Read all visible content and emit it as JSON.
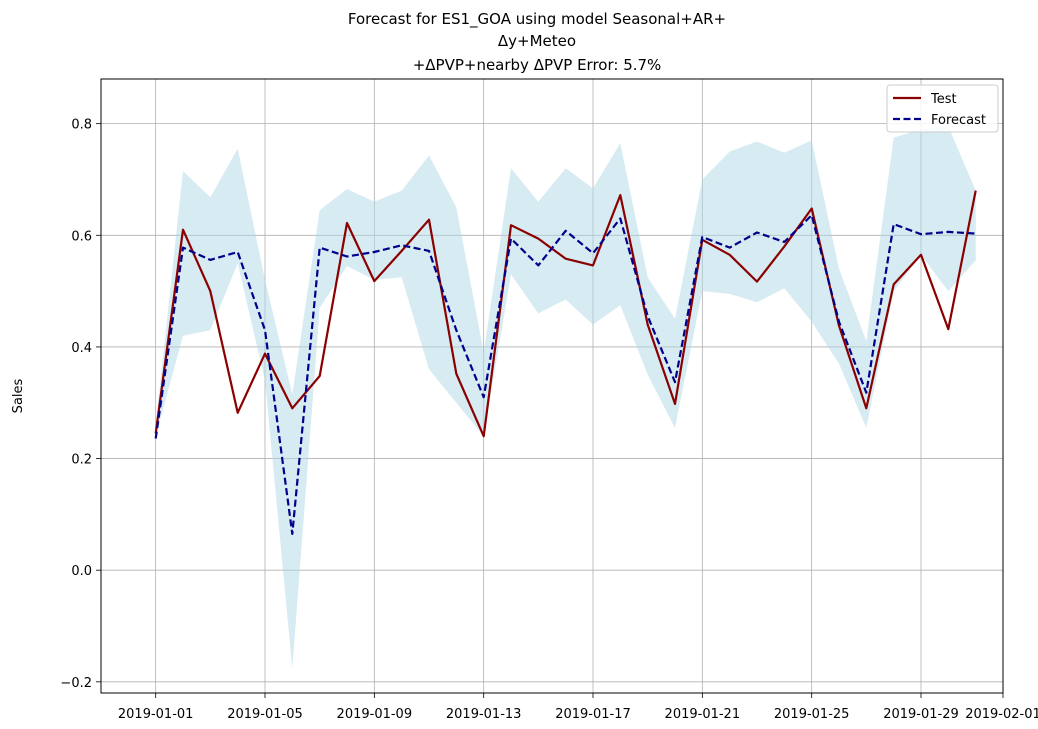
{
  "chart_data": {
    "type": "line",
    "title_lines": [
      "Forecast for ES1_GOA using model Seasonal+AR+",
      "Δy+Meteo",
      "+ΔPVP+nearby ΔPVP Error: 5.7%"
    ],
    "xlabel": "",
    "ylabel": "Sales",
    "x": [
      "2019-01-01",
      "2019-01-02",
      "2019-01-03",
      "2019-01-04",
      "2019-01-05",
      "2019-01-06",
      "2019-01-07",
      "2019-01-08",
      "2019-01-09",
      "2019-01-10",
      "2019-01-11",
      "2019-01-12",
      "2019-01-13",
      "2019-01-14",
      "2019-01-15",
      "2019-01-16",
      "2019-01-17",
      "2019-01-18",
      "2019-01-19",
      "2019-01-20",
      "2019-01-21",
      "2019-01-22",
      "2019-01-23",
      "2019-01-24",
      "2019-01-25",
      "2019-01-26",
      "2019-01-27",
      "2019-01-28",
      "2019-01-29",
      "2019-01-30",
      "2019-01-31"
    ],
    "series": [
      {
        "name": "Test",
        "color": "#8b0000",
        "style": "solid",
        "values": [
          0.245,
          0.61,
          0.5,
          0.282,
          0.388,
          0.29,
          0.348,
          0.622,
          0.518,
          0.572,
          0.628,
          0.352,
          0.24,
          0.618,
          0.594,
          0.558,
          0.546,
          0.672,
          0.44,
          0.298,
          0.592,
          0.565,
          0.517,
          0.58,
          0.648,
          0.438,
          0.29,
          0.512,
          0.565,
          0.432,
          0.68
        ]
      },
      {
        "name": "Forecast",
        "color": "#00008b",
        "style": "dashed",
        "values": [
          0.236,
          0.578,
          0.556,
          0.57,
          0.43,
          0.065,
          0.578,
          0.562,
          0.57,
          0.582,
          0.572,
          0.43,
          0.31,
          0.594,
          0.546,
          0.608,
          0.568,
          0.63,
          0.455,
          0.337,
          0.597,
          0.578,
          0.605,
          0.588,
          0.636,
          0.445,
          0.318,
          0.62,
          0.602,
          0.606,
          0.603
        ]
      }
    ],
    "band": {
      "color": "#add8e6",
      "lower": [
        0.24,
        0.42,
        0.43,
        0.55,
        0.34,
        -0.175,
        0.47,
        0.545,
        0.52,
        0.525,
        0.36,
        0.3,
        0.24,
        0.53,
        0.46,
        0.485,
        0.44,
        0.475,
        0.35,
        0.255,
        0.5,
        0.495,
        0.48,
        0.505,
        0.445,
        0.37,
        0.255,
        0.5,
        0.565,
        0.5,
        0.555
      ],
      "upper": [
        0.26,
        0.715,
        0.668,
        0.755,
        0.52,
        0.315,
        0.645,
        0.683,
        0.66,
        0.68,
        0.743,
        0.65,
        0.39,
        0.72,
        0.66,
        0.72,
        0.684,
        0.765,
        0.525,
        0.45,
        0.7,
        0.75,
        0.768,
        0.748,
        0.77,
        0.54,
        0.41,
        0.775,
        0.79,
        0.795,
        0.68
      ]
    },
    "ylim": [
      -0.22,
      0.88
    ],
    "yticks": [
      -0.2,
      0.0,
      0.2,
      0.4,
      0.6,
      0.8
    ],
    "ytick_labels": [
      "−0.2",
      "0.0",
      "0.2",
      "0.4",
      "0.6",
      "0.8"
    ],
    "xlim": [
      "2018-12-30",
      "2019-02-01"
    ],
    "xticks": [
      "2019-01-01",
      "2019-01-05",
      "2019-01-09",
      "2019-01-13",
      "2019-01-17",
      "2019-01-21",
      "2019-01-25",
      "2019-01-29",
      "2019-02-01"
    ],
    "grid": true,
    "legend_position": "top-right"
  }
}
